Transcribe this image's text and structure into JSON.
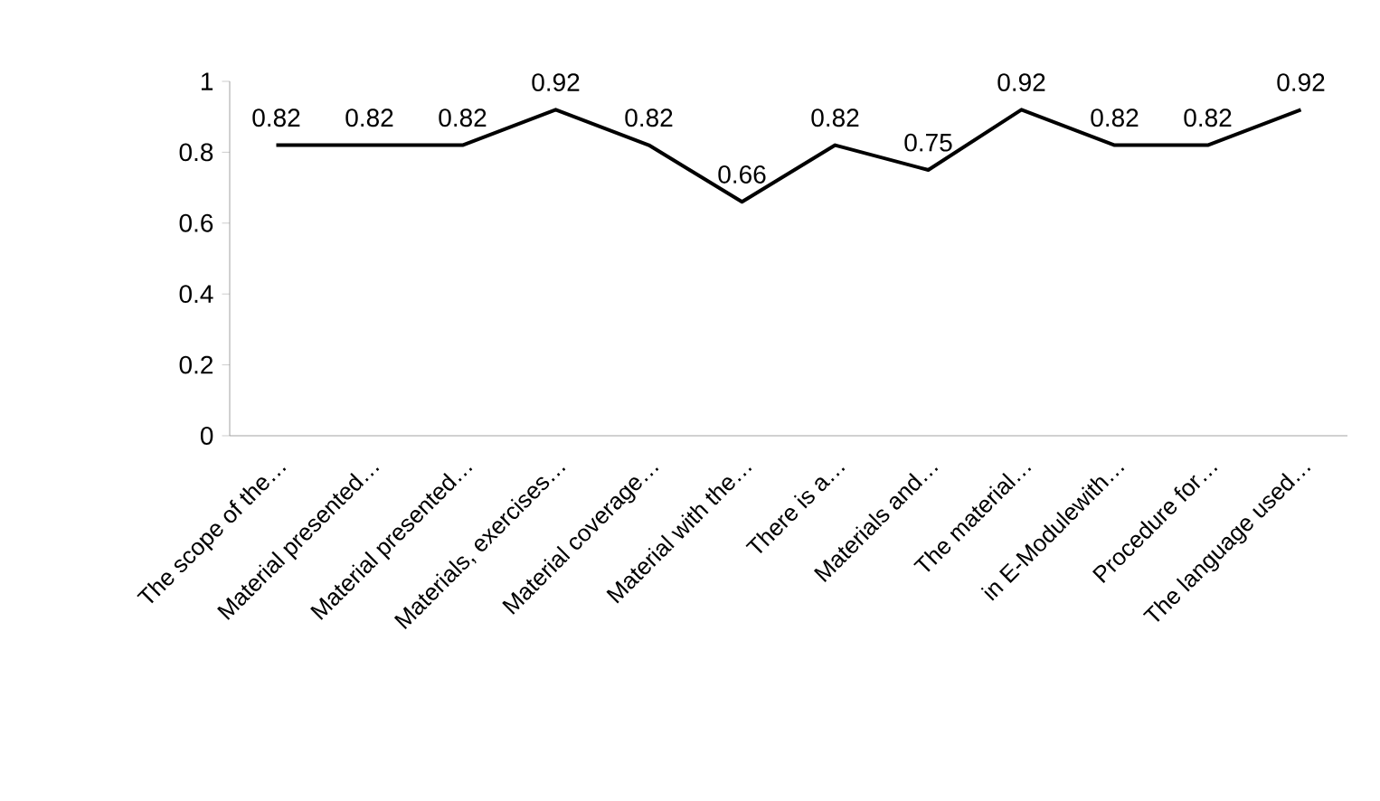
{
  "chart_data": {
    "type": "line",
    "categories": [
      "The scope of the…",
      "Material presented…",
      "Material presented…",
      "Materials, exercises…",
      "Material coverage…",
      "Material with the…",
      "There is a…",
      "Materials and…",
      "The material…",
      "in E-Modulewith…",
      "Procedure for…",
      "The language used…"
    ],
    "values": [
      0.82,
      0.82,
      0.82,
      0.92,
      0.82,
      0.66,
      0.82,
      0.75,
      0.92,
      0.82,
      0.82,
      0.92
    ],
    "color": "#000000",
    "ylim": [
      0,
      1
    ],
    "yticks": [
      0,
      0.2,
      0.4,
      0.6,
      0.8,
      1
    ],
    "data_labels": true,
    "grid": false,
    "marker": "none",
    "line_style": "solid"
  }
}
